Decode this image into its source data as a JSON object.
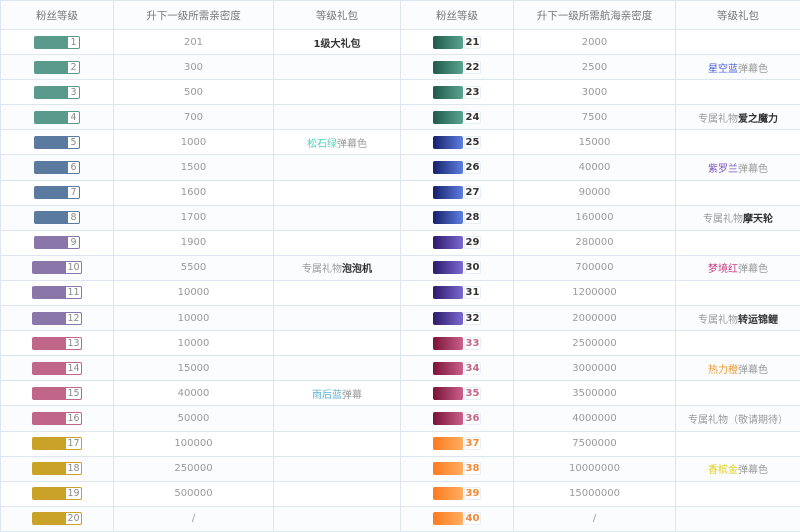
{
  "headers": [
    "粉丝等级",
    "升下一级所需亲密度",
    "等级礼包",
    "粉丝等级",
    "升下一级所需航海亲密度",
    "等级礼包"
  ],
  "rows": [
    {
      "l": {
        "level": "1",
        "value": "201",
        "color": "#5a9a8c",
        "gift": {
          "pre": "",
          "hl": "1级大礼包",
          "post": "",
          "color": "#333",
          "bold": true
        }
      },
      "r": {
        "level": "21",
        "value": "2000",
        "grad": [
          "#1f5a4a",
          "#5aa38f"
        ],
        "numColor": "#333"
      }
    },
    {
      "l": {
        "level": "2",
        "value": "300",
        "color": "#5a9a8c"
      },
      "r": {
        "level": "22",
        "value": "2500",
        "grad": [
          "#1f5a4a",
          "#5aa38f"
        ],
        "numColor": "#333",
        "gift": {
          "pre": "",
          "hl": "星空蓝",
          "post": "弹幕色",
          "color": "#4a5fd8"
        }
      }
    },
    {
      "l": {
        "level": "3",
        "value": "500",
        "color": "#5a9a8c"
      },
      "r": {
        "level": "23",
        "value": "3000",
        "grad": [
          "#1f5a4a",
          "#5aa38f"
        ],
        "numColor": "#333"
      }
    },
    {
      "l": {
        "level": "4",
        "value": "700",
        "color": "#5a9a8c"
      },
      "r": {
        "level": "24",
        "value": "7500",
        "grad": [
          "#1f5a4a",
          "#5aa38f"
        ],
        "numColor": "#333",
        "gift": {
          "pre": "专属礼物",
          "hl": "爱之魔力",
          "post": "",
          "color": "#333",
          "bold": true
        }
      }
    },
    {
      "l": {
        "level": "5",
        "value": "1000",
        "color": "#5b7aa0",
        "gift": {
          "pre": "",
          "hl": "松石绿",
          "post": "弹幕色",
          "color": "#4fd1c0"
        }
      },
      "r": {
        "level": "25",
        "value": "15000",
        "grad": [
          "#14206a",
          "#5e7fe0"
        ],
        "numColor": "#333"
      }
    },
    {
      "l": {
        "level": "6",
        "value": "1500",
        "color": "#5b7aa0"
      },
      "r": {
        "level": "26",
        "value": "40000",
        "grad": [
          "#14206a",
          "#5e7fe0"
        ],
        "numColor": "#333",
        "gift": {
          "pre": "",
          "hl": "紫罗兰",
          "post": "弹幕色",
          "color": "#7a55c0"
        }
      }
    },
    {
      "l": {
        "level": "7",
        "value": "1600",
        "color": "#5b7aa0"
      },
      "r": {
        "level": "27",
        "value": "90000",
        "grad": [
          "#14206a",
          "#5e7fe0"
        ],
        "numColor": "#333"
      }
    },
    {
      "l": {
        "level": "8",
        "value": "1700",
        "color": "#5b7aa0"
      },
      "r": {
        "level": "28",
        "value": "160000",
        "grad": [
          "#14206a",
          "#5e7fe0"
        ],
        "numColor": "#333",
        "gift": {
          "pre": "专属礼物",
          "hl": "摩天轮",
          "post": "",
          "color": "#333",
          "bold": true
        }
      }
    },
    {
      "l": {
        "level": "9",
        "value": "1900",
        "color": "#8a76a8"
      },
      "r": {
        "level": "29",
        "value": "280000",
        "grad": [
          "#2e1a6a",
          "#7a6ad0"
        ],
        "numColor": "#333"
      }
    },
    {
      "l": {
        "level": "10",
        "value": "5500",
        "color": "#8a76a8",
        "gift": {
          "pre": "专属礼物",
          "hl": "泡泡机",
          "post": "",
          "color": "#333",
          "bold": true
        }
      },
      "r": {
        "level": "30",
        "value": "700000",
        "grad": [
          "#2e1a6a",
          "#7a6ad0"
        ],
        "numColor": "#333",
        "gift": {
          "pre": "",
          "hl": "梦境红",
          "post": "弹幕色",
          "color": "#c23a7e"
        }
      }
    },
    {
      "l": {
        "level": "11",
        "value": "10000",
        "color": "#8a76a8"
      },
      "r": {
        "level": "31",
        "value": "1200000",
        "grad": [
          "#2e1a6a",
          "#7a6ad0"
        ],
        "numColor": "#333"
      }
    },
    {
      "l": {
        "level": "12",
        "value": "10000",
        "color": "#8a76a8"
      },
      "r": {
        "level": "32",
        "value": "2000000",
        "grad": [
          "#2e1a6a",
          "#7a6ad0"
        ],
        "numColor": "#333",
        "gift": {
          "pre": "专属礼物",
          "hl": "转运锦鲤",
          "post": "",
          "color": "#333",
          "bold": true
        }
      }
    },
    {
      "l": {
        "level": "13",
        "value": "10000",
        "color": "#c06688"
      },
      "r": {
        "level": "33",
        "value": "2500000",
        "grad": [
          "#7a1238",
          "#c8608a"
        ],
        "numColor": "#c06688"
      }
    },
    {
      "l": {
        "level": "14",
        "value": "15000",
        "color": "#c06688"
      },
      "r": {
        "level": "34",
        "value": "3000000",
        "grad": [
          "#7a1238",
          "#c8608a"
        ],
        "numColor": "#c06688",
        "gift": {
          "pre": "",
          "hl": "热力橙",
          "post": "弹幕色",
          "color": "#f0962a"
        }
      }
    },
    {
      "l": {
        "level": "15",
        "value": "40000",
        "color": "#c06688",
        "gift": {
          "pre": "",
          "hl": "雨后蓝",
          "post": "弹幕",
          "color": "#58b2d8"
        }
      },
      "r": {
        "level": "35",
        "value": "3500000",
        "grad": [
          "#7a1238",
          "#c8608a"
        ],
        "numColor": "#c06688"
      }
    },
    {
      "l": {
        "level": "16",
        "value": "50000",
        "color": "#c06688"
      },
      "r": {
        "level": "36",
        "value": "4000000",
        "grad": [
          "#7a1238",
          "#c8608a"
        ],
        "numColor": "#c06688",
        "gift": {
          "pre": "专属礼物（敬请期待）",
          "hl": "",
          "post": "",
          "color": "#999"
        }
      }
    },
    {
      "l": {
        "level": "17",
        "value": "100000",
        "color": "#c9a227"
      },
      "r": {
        "level": "37",
        "value": "7500000",
        "grad": [
          "#ff7a20",
          "#ffae60"
        ],
        "numColor": "#f08a3a"
      }
    },
    {
      "l": {
        "level": "18",
        "value": "250000",
        "color": "#c9a227"
      },
      "r": {
        "level": "38",
        "value": "10000000",
        "grad": [
          "#ff7a20",
          "#ffae60"
        ],
        "numColor": "#f08a3a",
        "gift": {
          "pre": "",
          "hl": "香槟金",
          "post": "弹幕色",
          "color": "#e2cf1e"
        }
      }
    },
    {
      "l": {
        "level": "19",
        "value": "500000",
        "color": "#c9a227"
      },
      "r": {
        "level": "39",
        "value": "15000000",
        "grad": [
          "#ff7a20",
          "#ffae60"
        ],
        "numColor": "#f08a3a"
      }
    },
    {
      "l": {
        "level": "20",
        "value": "/",
        "color": "#c9a227"
      },
      "r": {
        "level": "40",
        "value": "/",
        "grad": [
          "#ff7a20",
          "#ffae60"
        ],
        "numColor": "#f08a3a"
      }
    }
  ]
}
